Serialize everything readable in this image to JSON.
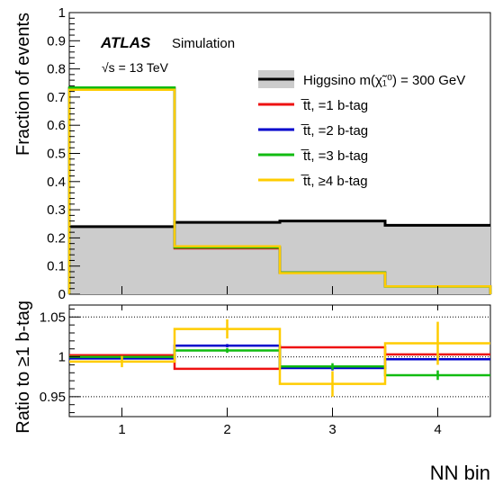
{
  "texts": {
    "top_ylabel": "Fraction of events",
    "bottom_ylabel": "Ratio to ≥1 b-tag",
    "xlabel": "NN bin",
    "atlas": "ATLAS",
    "simulation": "Simulation",
    "energy": "√s = 13 TeV"
  },
  "colors": {
    "signal_line": "#000000",
    "signal_fill": "#cccccc",
    "tt1": "#ee1111",
    "tt2": "#0000cc",
    "tt3": "#11bb11",
    "tt4": "#ffcc00"
  },
  "chart_data": [
    {
      "type": "step",
      "x_bins": [
        "1",
        "2",
        "3",
        "4"
      ],
      "ylabel": "Fraction of events",
      "ylim": [
        0,
        1
      ],
      "yticks": [
        "0",
        "0.1",
        "0.2",
        "0.3",
        "0.4",
        "0.5",
        "0.6",
        "0.7",
        "0.8",
        "0.9",
        "1"
      ],
      "series": [
        {
          "name": "Higgsino m(χ̃₁⁰) = 300 GeV",
          "values": [
            0.24,
            0.255,
            0.26,
            0.245
          ],
          "color": "#000000",
          "style": "filled"
        },
        {
          "name": "t̅t, =1 b-tag",
          "values": [
            0.732,
            0.163,
            0.077,
            0.028
          ],
          "color": "#ee1111"
        },
        {
          "name": "t̅t, =2 b-tag",
          "values": [
            0.729,
            0.167,
            0.076,
            0.028
          ],
          "color": "#0000cc"
        },
        {
          "name": "t̅t, =3 b-tag",
          "values": [
            0.734,
            0.166,
            0.077,
            0.027
          ],
          "color": "#11bb11"
        },
        {
          "name": "t̅t, ≥4 b-tag",
          "values": [
            0.726,
            0.17,
            0.075,
            0.028
          ],
          "color": "#ffcc00"
        }
      ],
      "legend_position": "top-right"
    },
    {
      "type": "step",
      "x_bins": [
        "1",
        "2",
        "3",
        "4"
      ],
      "xlabel": "NN bin",
      "ylabel": "Ratio to ≥1 b-tag",
      "ylim": [
        0.925,
        1.065
      ],
      "yticks": [
        "0.95",
        "1",
        "1.05"
      ],
      "gridlines": [
        0.95,
        1.0,
        1.05
      ],
      "series": [
        {
          "name": "t̅t, =1 b-tag",
          "values": [
            1.002,
            0.985,
            1.012,
            1.003
          ],
          "errors": [
            0.001,
            0.001,
            0.001,
            0.001
          ],
          "color": "#ee1111"
        },
        {
          "name": "t̅t, =2 b-tag",
          "values": [
            0.998,
            1.014,
            0.986,
            0.997
          ],
          "errors": [
            0.001,
            0.002,
            0.003,
            0.002
          ],
          "color": "#0000cc"
        },
        {
          "name": "t̅t, =3 b-tag",
          "values": [
            1.0,
            1.008,
            0.988,
            0.977
          ],
          "errors": [
            0.001,
            0.003,
            0.004,
            0.006
          ],
          "color": "#11bb11"
        },
        {
          "name": "t̅t, ≥4 b-tag",
          "values": [
            0.994,
            1.035,
            0.966,
            1.017
          ],
          "errors": [
            0.007,
            0.012,
            0.016,
            0.027
          ],
          "color": "#ffcc00"
        }
      ]
    }
  ]
}
